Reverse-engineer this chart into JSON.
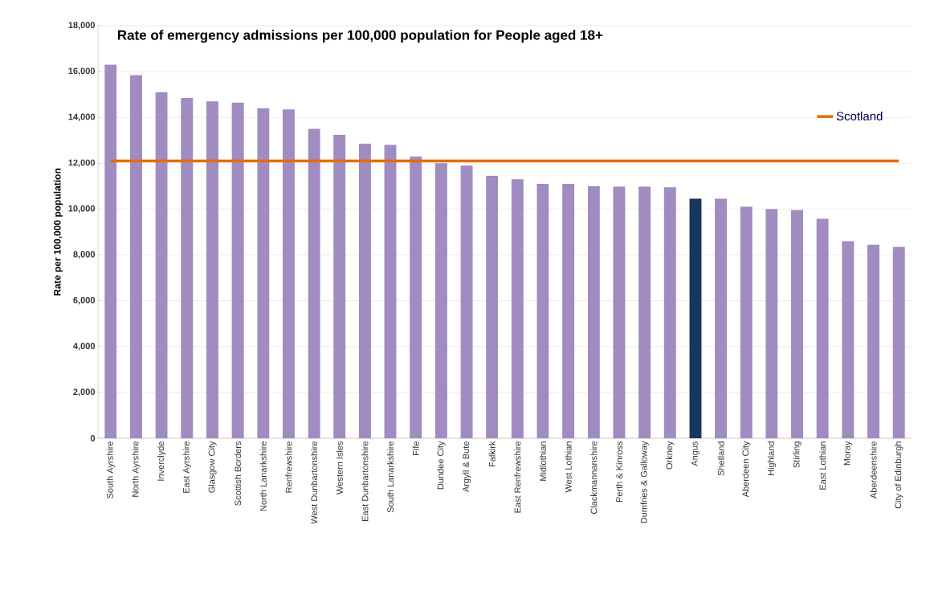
{
  "chart_data": {
    "type": "bar",
    "title": "Rate of emergency admissions per 100,000 population for People aged 18+",
    "ylabel": "Rate per 100,000 population",
    "categories": [
      "South Ayrshire",
      "North Ayrshire",
      "Inverclyde",
      "East Ayrshire",
      "Glasgow City",
      "Scottish Borders",
      "North Lanarkshire",
      "Renfrewshire",
      "West Dunbartonshire",
      "Western Isles",
      "East Dunbartonshire",
      "South Lanarkshire",
      "Fife",
      "Dundee City",
      "Argyll & Bute",
      "Falkirk",
      "East Renfrewshire",
      "Midlothian",
      "West Lothian",
      "Clackmannanshire",
      "Perth & Kinross",
      "Dumfries & Galloway",
      "Orkney",
      "Angus",
      "Shetland",
      "Aberdeen City",
      "Highland",
      "Stirling",
      "East Lothian",
      "Moray",
      "Aberdeenshire",
      "City of Edinburgh"
    ],
    "series": [
      {
        "colors": [
          "#a08cc0",
          "#a08cc0",
          "#a08cc0",
          "#a08cc0",
          "#a08cc0",
          "#a08cc0",
          "#a08cc0",
          "#a08cc0",
          "#a08cc0",
          "#a08cc0",
          "#a08cc0",
          "#a08cc0",
          "#a08cc0",
          "#a08cc0",
          "#a08cc0",
          "#a08cc0",
          "#a08cc0",
          "#a08cc0",
          "#a08cc0",
          "#a08cc0",
          "#a08cc0",
          "#a08cc0",
          "#a08cc0",
          "#17375e",
          "#a08cc0",
          "#a08cc0",
          "#a08cc0",
          "#a08cc0",
          "#a08cc0",
          "#a08cc0",
          "#a08cc0",
          "#a08cc0"
        ],
        "values": [
          16300,
          15850,
          15100,
          14850,
          14700,
          14650,
          14400,
          14350,
          13500,
          13250,
          12850,
          12800,
          12300,
          12000,
          11900,
          11450,
          11300,
          11100,
          11100,
          11000,
          10980,
          10980,
          10950,
          10450,
          10450,
          10100,
          10000,
          9950,
          9580,
          8600,
          8450,
          8350
        ]
      },
      {
        "type": "line",
        "name": "Scotland",
        "color": "#e46c0a",
        "values": [
          12100,
          12100,
          12100,
          12100,
          12100,
          12100,
          12100,
          12100,
          12100,
          12100,
          12100,
          12100,
          12100,
          12100,
          12100,
          12100,
          12100,
          12100,
          12100,
          12100,
          12100,
          12100,
          12100,
          12100,
          12100,
          12100,
          12100,
          12100,
          12100,
          12100,
          12100,
          12100
        ]
      }
    ],
    "ylim": [
      0,
      18000
    ],
    "yticks": [
      0,
      {
        "value": 2000,
        "label": "2,000"
      },
      {
        "value": 4000,
        "label": "4,000"
      },
      {
        "value": 6000,
        "label": "6,000"
      },
      {
        "value": 8000,
        "label": "8,000"
      },
      {
        "value": 10000,
        "label": "10,000"
      },
      {
        "value": 12000,
        "label": "12,000"
      },
      {
        "value": 14000,
        "label": "14,000"
      },
      {
        "value": 16000,
        "label": "16,000"
      },
      {
        "value": 18000,
        "label": "18,000"
      }
    ],
    "grid": "y",
    "legend": "top right"
  }
}
